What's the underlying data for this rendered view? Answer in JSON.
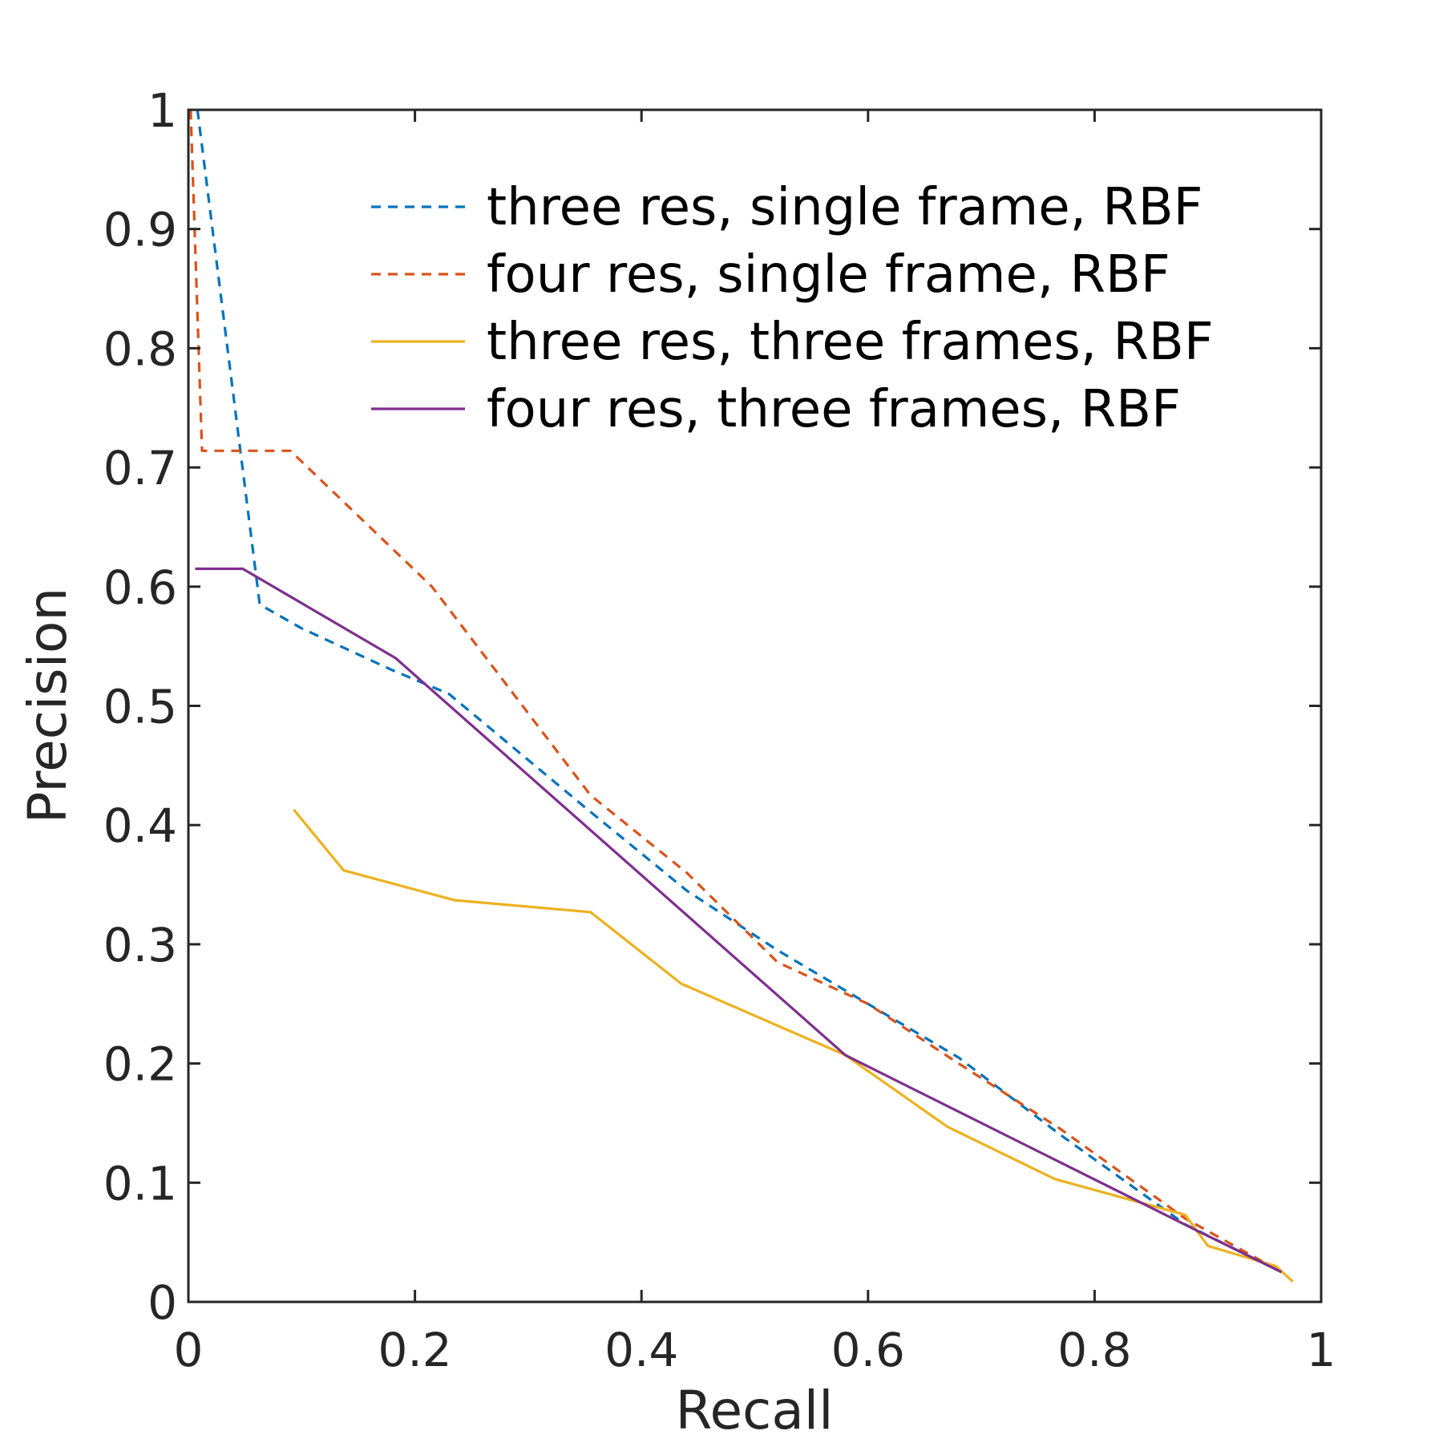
{
  "chart_data": {
    "type": "line",
    "xlabel": "Recall",
    "ylabel": "Precision",
    "xlim": [
      0,
      1
    ],
    "ylim": [
      0,
      1
    ],
    "xticks": [
      "0",
      "0.2",
      "0.4",
      "0.6",
      "0.8",
      "1"
    ],
    "yticks": [
      "0",
      "0.1",
      "0.2",
      "0.3",
      "0.4",
      "0.5",
      "0.6",
      "0.7",
      "0.8",
      "0.9",
      "1"
    ],
    "grid": false,
    "box": true,
    "legend_position": "top-right",
    "series": [
      {
        "name": "three res, single frame, RBF",
        "color": "#0072BD",
        "style": "dashed",
        "x": [
          0.008,
          0.063,
          0.1,
          0.18,
          0.23,
          0.35,
          0.44,
          0.52,
          0.6,
          0.68,
          0.77,
          0.88,
          0.965
        ],
        "y": [
          1.0,
          0.585,
          0.565,
          0.53,
          0.51,
          0.415,
          0.345,
          0.295,
          0.25,
          0.205,
          0.14,
          0.065,
          0.025
        ]
      },
      {
        "name": "four res, single frame, RBF",
        "color": "#D95319",
        "style": "dashed",
        "x": [
          0.002,
          0.012,
          0.09,
          0.215,
          0.355,
          0.44,
          0.52,
          0.6,
          0.68,
          0.77,
          0.88,
          0.965
        ],
        "y": [
          1.0,
          0.714,
          0.714,
          0.6,
          0.425,
          0.36,
          0.285,
          0.25,
          0.2,
          0.145,
          0.07,
          0.025
        ]
      },
      {
        "name": "three res, three frames, RBF",
        "color": "#EDB120",
        "style": "solid",
        "x": [
          0.093,
          0.137,
          0.235,
          0.355,
          0.435,
          0.58,
          0.67,
          0.765,
          0.88,
          0.9,
          0.96,
          0.975
        ],
        "y": [
          0.413,
          0.362,
          0.337,
          0.327,
          0.267,
          0.207,
          0.147,
          0.103,
          0.073,
          0.047,
          0.03,
          0.017
        ]
      },
      {
        "name": "four res, three frames, RBF",
        "color": "#7E2F8E",
        "style": "solid",
        "x": [
          0.006,
          0.048,
          0.183,
          0.58,
          0.89,
          0.965
        ],
        "y": [
          0.615,
          0.615,
          0.54,
          0.207,
          0.06,
          0.025
        ]
      }
    ]
  }
}
